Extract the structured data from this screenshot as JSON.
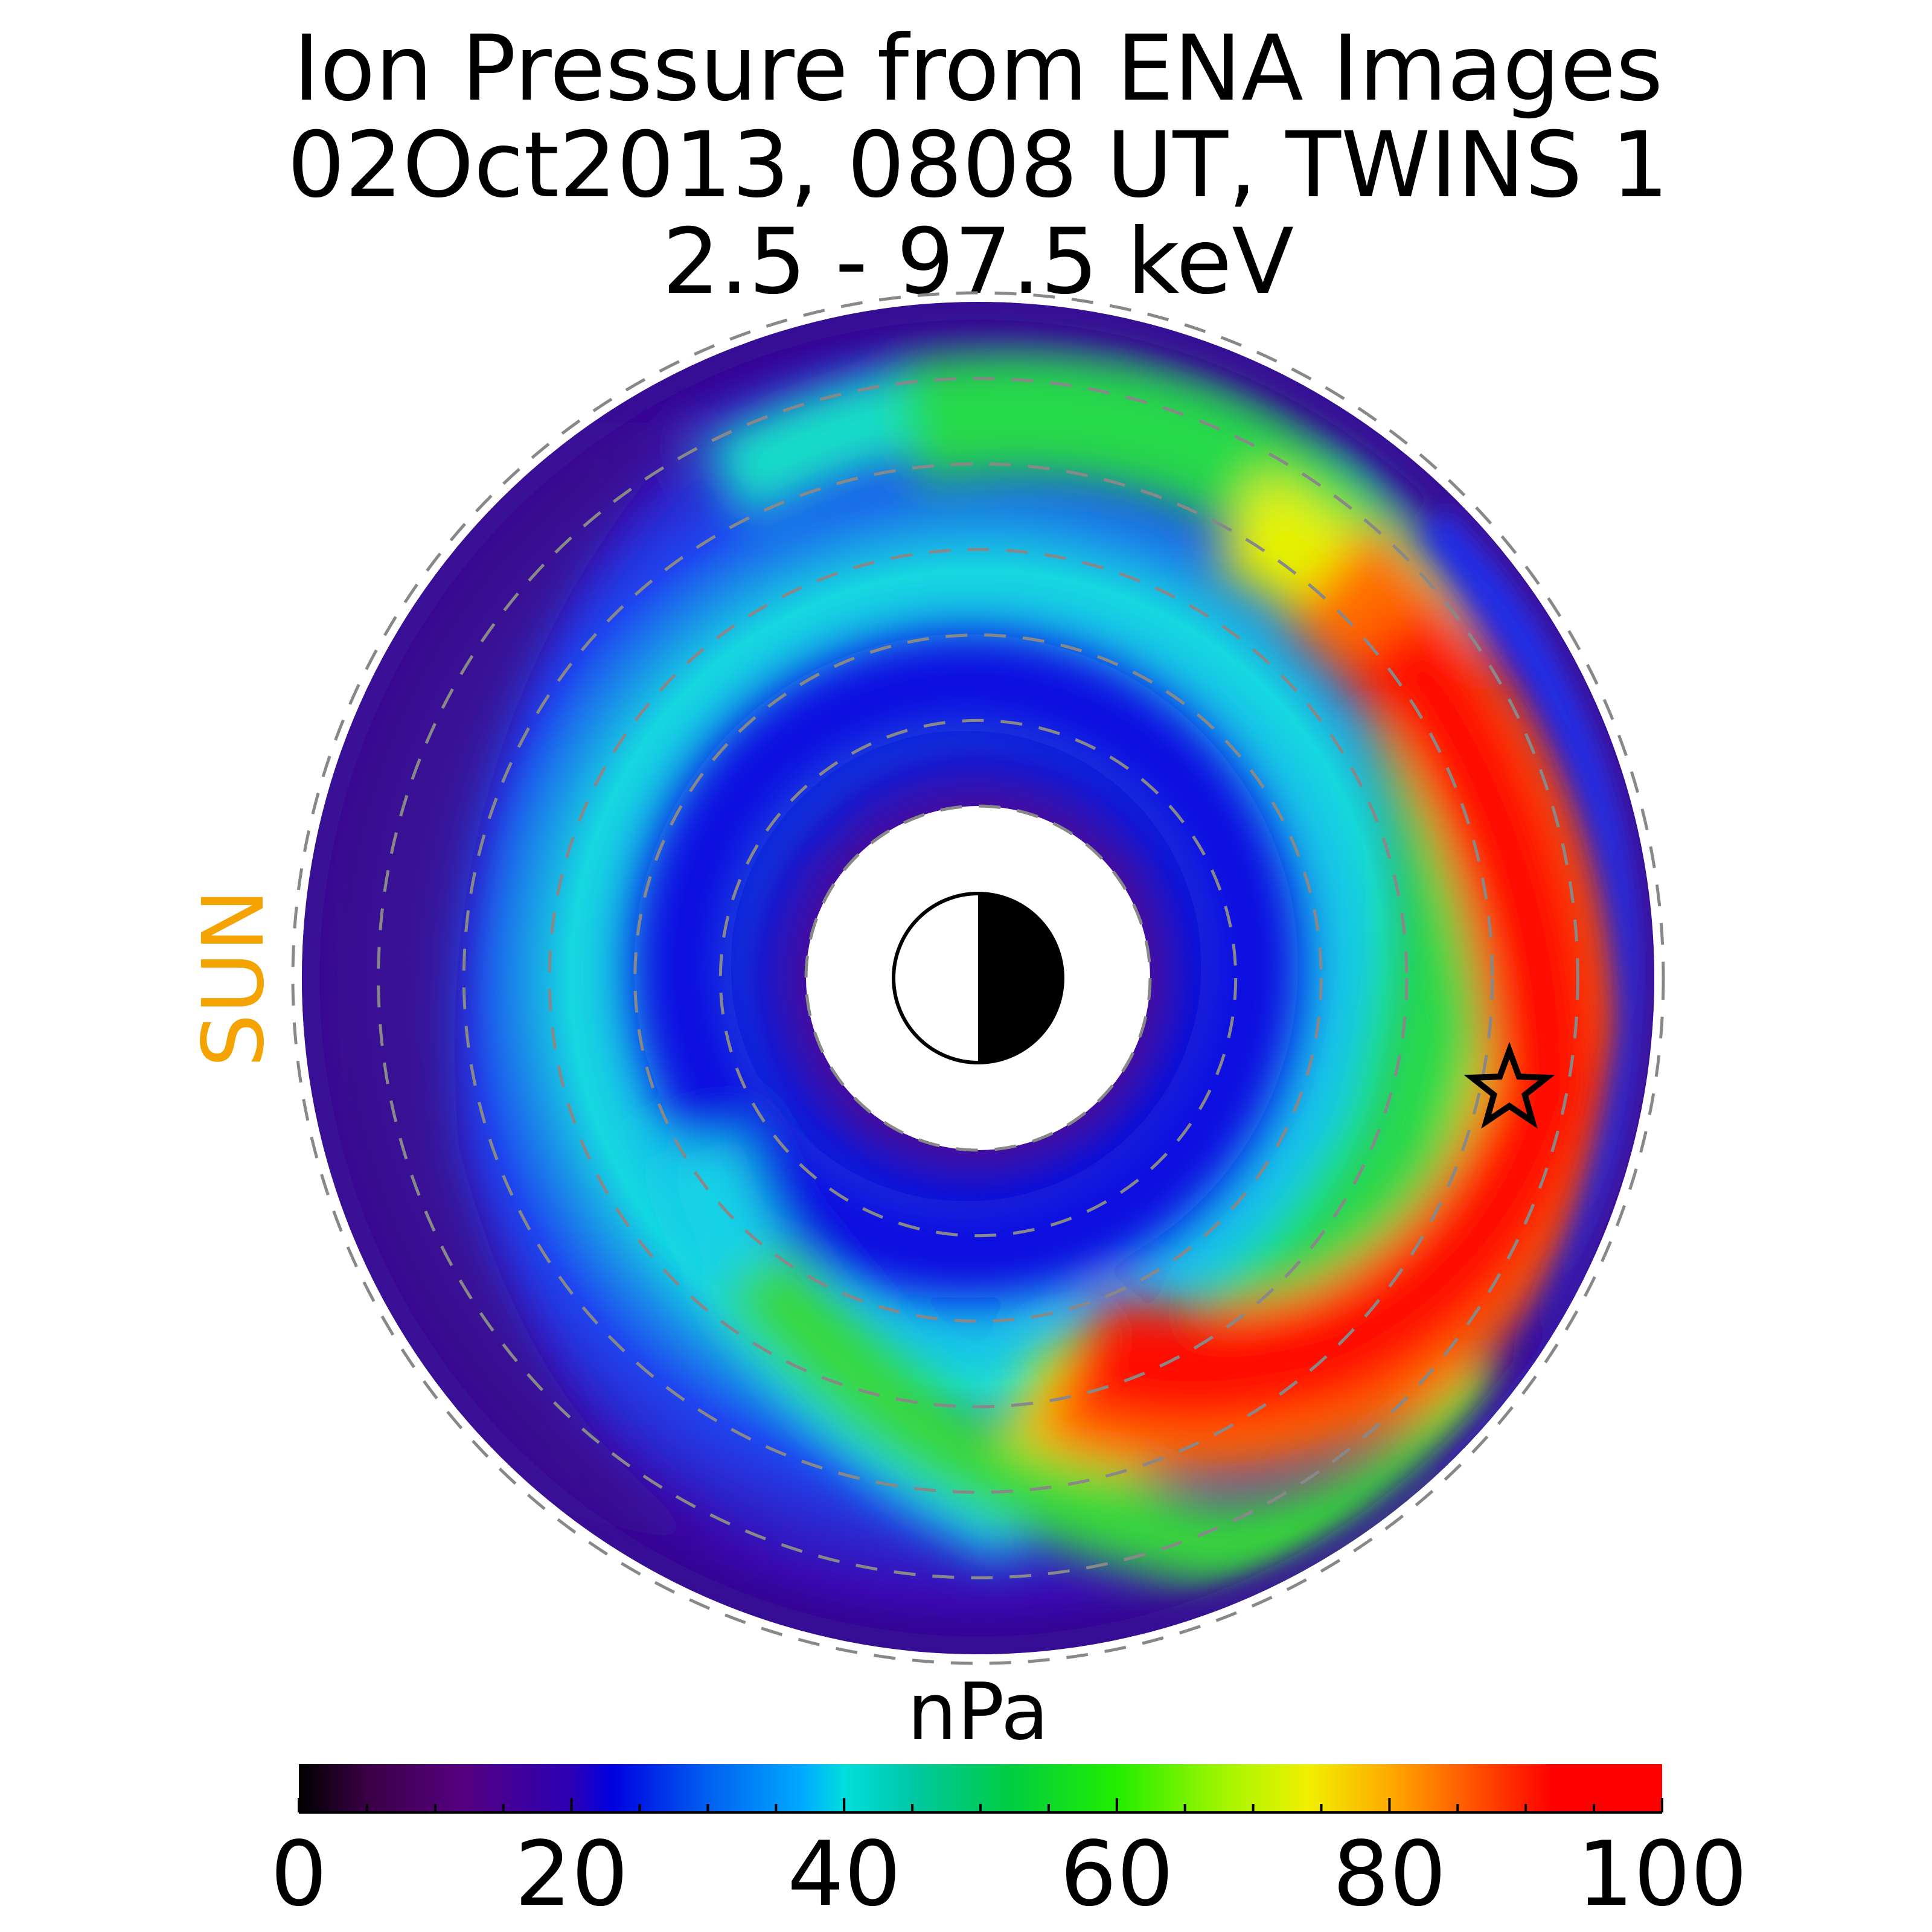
{
  "title": {
    "line1": "Ion Pressure from  ENA Images",
    "line2": "02Oct2013, 0808 UT,  TWINS 1",
    "line3": "2.5 - 97.5 keV"
  },
  "sun_label": "SUN",
  "colors": {
    "sun": "#f5a300",
    "grid": "#888888",
    "star": "#000000"
  },
  "chart_data": {
    "type": "heatmap",
    "projection": "polar equatorial map (sun to the left)",
    "colormap": "nipy_spectral-like (black-purple-blue-cyan-green-yellow-red)",
    "colorbar": {
      "label": "nPa",
      "min": 0,
      "max": 100,
      "ticks": [
        0,
        20,
        40,
        60,
        80,
        100
      ],
      "tick_labels": [
        "0",
        "20",
        "40",
        "60",
        "80",
        "100"
      ]
    },
    "dashed_circles": 7,
    "pressure_peak": {
      "value": 100,
      "location": "dusk to midnight sector, outer ring"
    },
    "features": [
      "Earth symbol at center (day side white, night side black)",
      "star marker on the night side"
    ]
  }
}
